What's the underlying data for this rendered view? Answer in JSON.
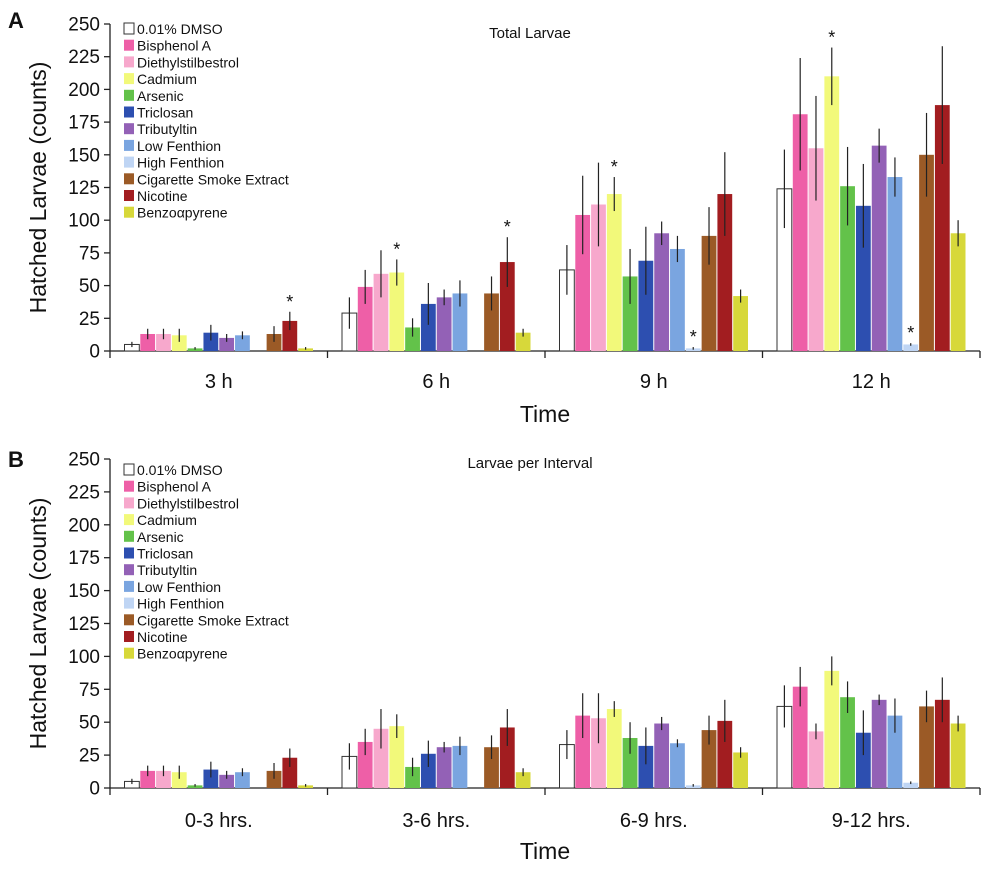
{
  "chart_data": [
    {
      "panel": "A",
      "type": "bar",
      "title": "Total Larvae",
      "xlabel": "Time",
      "ylabel": "Hatched Larvae (counts)",
      "ylim": [
        0,
        250
      ],
      "yticks": [
        0,
        25,
        50,
        75,
        100,
        125,
        150,
        175,
        200,
        225,
        250
      ],
      "legend_position": "top-left",
      "categories": [
        "3 h",
        "6 h",
        "9 h",
        "12 h"
      ],
      "series": [
        {
          "name": "0.01% DMSO",
          "color": "#ffffff",
          "values": [
            5,
            29,
            62,
            124
          ],
          "errors": [
            2,
            12,
            19,
            30
          ],
          "sig": [
            false,
            false,
            false,
            false
          ]
        },
        {
          "name": "Bisphenol A",
          "color": "#ee5fa7",
          "values": [
            13,
            49,
            104,
            181
          ],
          "errors": [
            4,
            13,
            30,
            43
          ],
          "sig": [
            false,
            false,
            false,
            false
          ]
        },
        {
          "name": "Diethylstilbestrol",
          "color": "#f7a8cc",
          "values": [
            13,
            59,
            112,
            155
          ],
          "errors": [
            4,
            18,
            32,
            40
          ],
          "sig": [
            false,
            false,
            false,
            false
          ]
        },
        {
          "name": "Cadmium",
          "color": "#f2f97a",
          "values": [
            12,
            60,
            120,
            210
          ],
          "errors": [
            5,
            10,
            13,
            22
          ],
          "sig": [
            false,
            true,
            true,
            true
          ]
        },
        {
          "name": "Arsenic",
          "color": "#63c24a",
          "values": [
            2,
            18,
            57,
            126
          ],
          "errors": [
            1,
            7,
            21,
            30
          ],
          "sig": [
            false,
            false,
            false,
            false
          ]
        },
        {
          "name": "Triclosan",
          "color": "#2d4fb0",
          "values": [
            14,
            36,
            69,
            111
          ],
          "errors": [
            6,
            16,
            26,
            32
          ],
          "sig": [
            false,
            false,
            false,
            false
          ]
        },
        {
          "name": "Tributyltin",
          "color": "#9361b6",
          "values": [
            10,
            41,
            90,
            157
          ],
          "errors": [
            3,
            6,
            9,
            13
          ],
          "sig": [
            false,
            false,
            false,
            false
          ]
        },
        {
          "name": "Low Fenthion",
          "color": "#7aa5e0",
          "values": [
            12,
            44,
            78,
            133
          ],
          "errors": [
            3,
            10,
            10,
            15
          ],
          "sig": [
            false,
            false,
            false,
            false
          ]
        },
        {
          "name": "High Fenthion",
          "color": "#bfd5f4",
          "values": [
            0,
            0,
            2,
            5
          ],
          "errors": [
            0,
            0,
            1,
            1
          ],
          "sig": [
            false,
            false,
            true,
            true
          ]
        },
        {
          "name": "Cigarette Smoke Extract",
          "color": "#9b5a26",
          "values": [
            13,
            44,
            88,
            150
          ],
          "errors": [
            6,
            13,
            22,
            32
          ],
          "sig": [
            false,
            false,
            false,
            false
          ]
        },
        {
          "name": "Nicotine",
          "color": "#a21d20",
          "values": [
            23,
            68,
            120,
            188
          ],
          "errors": [
            7,
            19,
            32,
            45
          ],
          "sig": [
            true,
            true,
            false,
            false
          ]
        },
        {
          "name": "Benzoαpyrene",
          "color": "#d7d83a",
          "values": [
            2,
            14,
            42,
            90
          ],
          "errors": [
            1,
            3,
            5,
            10
          ],
          "sig": [
            false,
            false,
            false,
            false
          ]
        }
      ]
    },
    {
      "panel": "B",
      "type": "bar",
      "title": "Larvae per Interval",
      "xlabel": "Time",
      "ylabel": "Hatched Larvae (counts)",
      "ylim": [
        0,
        250
      ],
      "yticks": [
        0,
        25,
        50,
        75,
        100,
        125,
        150,
        175,
        200,
        225,
        250
      ],
      "legend_position": "top-left",
      "categories": [
        "0-3 hrs.",
        "3-6 hrs.",
        "6-9 hrs.",
        "9-12 hrs."
      ],
      "series": [
        {
          "name": "0.01% DMSO",
          "color": "#ffffff",
          "values": [
            5,
            24,
            33,
            62
          ],
          "errors": [
            2,
            10,
            11,
            16
          ],
          "sig": [
            false,
            false,
            false,
            false
          ]
        },
        {
          "name": "Bisphenol A",
          "color": "#ee5fa7",
          "values": [
            13,
            35,
            55,
            77
          ],
          "errors": [
            4,
            10,
            17,
            15
          ],
          "sig": [
            false,
            false,
            false,
            false
          ]
        },
        {
          "name": "Diethylstilbestrol",
          "color": "#f7a8cc",
          "values": [
            13,
            45,
            53,
            43
          ],
          "errors": [
            4,
            15,
            19,
            6
          ],
          "sig": [
            false,
            false,
            false,
            false
          ]
        },
        {
          "name": "Cadmium",
          "color": "#f2f97a",
          "values": [
            12,
            47,
            60,
            89
          ],
          "errors": [
            5,
            9,
            6,
            11
          ],
          "sig": [
            false,
            false,
            false,
            false
          ]
        },
        {
          "name": "Arsenic",
          "color": "#63c24a",
          "values": [
            2,
            16,
            38,
            69
          ],
          "errors": [
            1,
            7,
            12,
            12
          ],
          "sig": [
            false,
            false,
            false,
            false
          ]
        },
        {
          "name": "Triclosan",
          "color": "#2d4fb0",
          "values": [
            14,
            26,
            32,
            42
          ],
          "errors": [
            6,
            10,
            14,
            17
          ],
          "sig": [
            false,
            false,
            false,
            false
          ]
        },
        {
          "name": "Tributyltin",
          "color": "#9361b6",
          "values": [
            10,
            31,
            49,
            67
          ],
          "errors": [
            3,
            4,
            5,
            4
          ],
          "sig": [
            false,
            false,
            false,
            false
          ]
        },
        {
          "name": "Low Fenthion",
          "color": "#7aa5e0",
          "values": [
            12,
            32,
            34,
            55
          ],
          "errors": [
            3,
            7,
            3,
            13
          ],
          "sig": [
            false,
            false,
            false,
            false
          ]
        },
        {
          "name": "High Fenthion",
          "color": "#bfd5f4",
          "values": [
            0,
            0,
            2,
            4
          ],
          "errors": [
            0,
            0,
            1,
            1
          ],
          "sig": [
            false,
            false,
            false,
            false
          ]
        },
        {
          "name": "Cigarette Smoke Extract",
          "color": "#9b5a26",
          "values": [
            13,
            31,
            44,
            62
          ],
          "errors": [
            6,
            9,
            11,
            12
          ],
          "sig": [
            false,
            false,
            false,
            false
          ]
        },
        {
          "name": "Nicotine",
          "color": "#a21d20",
          "values": [
            23,
            46,
            51,
            67
          ],
          "errors": [
            7,
            14,
            16,
            17
          ],
          "sig": [
            false,
            false,
            false,
            false
          ]
        },
        {
          "name": "Benzoαpyrene",
          "color": "#d7d83a",
          "values": [
            2,
            12,
            27,
            49
          ],
          "errors": [
            1,
            3,
            4,
            6
          ],
          "sig": [
            false,
            false,
            false,
            false
          ]
        }
      ]
    }
  ]
}
